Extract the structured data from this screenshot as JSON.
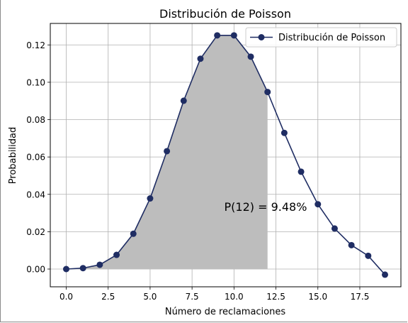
{
  "chart_data": {
    "type": "line",
    "title": "Distribución de Poisson",
    "xlabel": "Número de reclamaciones",
    "ylabel": "Probabilidad",
    "xlim": [
      -0.95,
      19.95
    ],
    "ylim": [
      -0.0095,
      0.1315
    ],
    "x_ticks": [
      0.0,
      2.5,
      5.0,
      7.5,
      10.0,
      12.5,
      15.0,
      17.5
    ],
    "x_tick_labels": [
      "0.0",
      "2.5",
      "5.0",
      "7.5",
      "10.0",
      "12.5",
      "15.0",
      "17.5"
    ],
    "y_ticks": [
      0.0,
      0.02,
      0.04,
      0.06,
      0.08,
      0.1,
      0.12
    ],
    "y_tick_labels": [
      "0.00",
      "0.02",
      "0.04",
      "0.06",
      "0.08",
      "0.10",
      "0.12"
    ],
    "grid": true,
    "legend_position": "top-right",
    "series": [
      {
        "name": "Distribución de Poisson",
        "color": "#1f2d63",
        "marker": "circle",
        "x": [
          0,
          1,
          2,
          3,
          4,
          5,
          6,
          7,
          8,
          9,
          10,
          11,
          12,
          13,
          14,
          15,
          16,
          17,
          18,
          19
        ],
        "y": [
          0.0,
          0.0005,
          0.0023,
          0.0076,
          0.0189,
          0.0378,
          0.0631,
          0.0901,
          0.1126,
          0.1251,
          0.1251,
          0.1137,
          0.0948,
          0.0729,
          0.0521,
          0.0347,
          0.0217,
          0.0128,
          0.0071,
          -0.003
        ]
      }
    ],
    "shaded_region": {
      "x_from": 0,
      "x_to": 12,
      "color": "#bdbdbd"
    },
    "annotation": {
      "text": "P(12) = 9.48%",
      "x": 9.5,
      "y": 0.032
    }
  }
}
